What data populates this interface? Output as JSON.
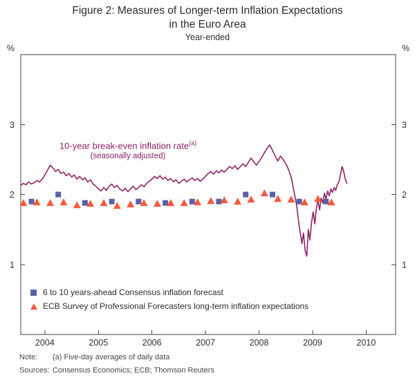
{
  "chart_data": {
    "type": "line",
    "title": "Figure 2: Measures of Longer-term Inflation Expectations",
    "subtitle": "in the Euro Area",
    "frequency_label": "Year-ended",
    "ylabel_left": "%",
    "ylabel_right": "%",
    "ylim": [
      0,
      4
    ],
    "yticks": [
      1,
      2,
      3
    ],
    "xlim": [
      2003.55,
      2010.55
    ],
    "xticks": [
      2004,
      2005,
      2006,
      2007,
      2008,
      2009,
      2010
    ],
    "grid": false,
    "annotation": {
      "line1": "10-year break-even inflation rate",
      "sup": "(a)",
      "line2": "(seasonally adjusted)",
      "color": "#8d2164"
    },
    "legend": {
      "position": "inside-bottom-left",
      "items": [
        {
          "label": "6 to 10 years-ahead Consensus inflation forecast",
          "marker": "square",
          "color": "#5661a8"
        },
        {
          "label": "ECB Survey of Professional Forecasters long-term inflation expectations",
          "marker": "triangle",
          "color": "#f25b3d"
        }
      ]
    },
    "series": [
      {
        "name": "10-year break-even inflation rate (seasonally adjusted)",
        "type": "line",
        "color": "#8d2164",
        "x": [
          2003.55,
          2003.6,
          2003.65,
          2003.7,
          2003.75,
          2003.8,
          2003.85,
          2003.9,
          2003.95,
          2004.0,
          2004.05,
          2004.1,
          2004.15,
          2004.2,
          2004.25,
          2004.3,
          2004.35,
          2004.4,
          2004.45,
          2004.5,
          2004.55,
          2004.6,
          2004.65,
          2004.7,
          2004.75,
          2004.8,
          2004.85,
          2004.9,
          2004.95,
          2005.0,
          2005.05,
          2005.1,
          2005.15,
          2005.2,
          2005.25,
          2005.3,
          2005.35,
          2005.4,
          2005.45,
          2005.5,
          2005.55,
          2005.6,
          2005.65,
          2005.7,
          2005.75,
          2005.8,
          2005.85,
          2005.9,
          2005.95,
          2006.0,
          2006.05,
          2006.1,
          2006.15,
          2006.2,
          2006.25,
          2006.3,
          2006.35,
          2006.4,
          2006.45,
          2006.5,
          2006.55,
          2006.6,
          2006.65,
          2006.7,
          2006.75,
          2006.8,
          2006.85,
          2006.9,
          2006.95,
          2007.0,
          2007.05,
          2007.1,
          2007.15,
          2007.2,
          2007.25,
          2007.3,
          2007.35,
          2007.4,
          2007.45,
          2007.5,
          2007.55,
          2007.6,
          2007.65,
          2007.7,
          2007.75,
          2007.8,
          2007.85,
          2007.9,
          2007.95,
          2008.0,
          2008.05,
          2008.1,
          2008.15,
          2008.2,
          2008.25,
          2008.3,
          2008.35,
          2008.4,
          2008.45,
          2008.5,
          2008.55,
          2008.6,
          2008.65,
          2008.7,
          2008.75,
          2008.8,
          2008.83,
          2008.86,
          2008.89,
          2008.92,
          2008.95,
          2008.98,
          2009.01,
          2009.04,
          2009.07,
          2009.1,
          2009.13,
          2009.16,
          2009.19,
          2009.22,
          2009.25,
          2009.28,
          2009.31,
          2009.34,
          2009.37,
          2009.4,
          2009.43,
          2009.46,
          2009.49,
          2009.52,
          2009.55,
          2009.58,
          2009.61,
          2009.64
        ],
        "y": [
          2.13,
          2.16,
          2.14,
          2.18,
          2.15,
          2.17,
          2.2,
          2.18,
          2.22,
          2.28,
          2.35,
          2.42,
          2.38,
          2.33,
          2.36,
          2.3,
          2.32,
          2.27,
          2.3,
          2.25,
          2.28,
          2.22,
          2.26,
          2.21,
          2.24,
          2.18,
          2.21,
          2.15,
          2.12,
          2.08,
          2.05,
          2.1,
          2.06,
          2.12,
          2.15,
          2.1,
          2.13,
          2.08,
          2.05,
          2.09,
          2.04,
          2.08,
          2.12,
          2.07,
          2.1,
          2.14,
          2.11,
          2.16,
          2.19,
          2.22,
          2.26,
          2.23,
          2.27,
          2.22,
          2.25,
          2.2,
          2.23,
          2.18,
          2.21,
          2.16,
          2.19,
          2.22,
          2.18,
          2.21,
          2.24,
          2.2,
          2.23,
          2.19,
          2.22,
          2.26,
          2.3,
          2.33,
          2.29,
          2.34,
          2.31,
          2.35,
          2.32,
          2.36,
          2.4,
          2.37,
          2.41,
          2.36,
          2.4,
          2.44,
          2.4,
          2.46,
          2.52,
          2.47,
          2.42,
          2.47,
          2.53,
          2.6,
          2.66,
          2.71,
          2.63,
          2.55,
          2.48,
          2.55,
          2.5,
          2.44,
          2.36,
          2.25,
          2.05,
          1.85,
          1.55,
          1.3,
          1.45,
          1.2,
          1.12,
          1.5,
          1.35,
          1.6,
          1.75,
          1.58,
          1.8,
          1.92,
          1.78,
          1.95,
          1.88,
          2.02,
          1.93,
          2.05,
          1.98,
          2.08,
          2.03,
          2.1,
          2.06,
          2.14,
          2.18,
          2.28,
          2.4,
          2.33,
          2.22,
          2.16
        ]
      },
      {
        "name": "6 to 10 years-ahead Consensus inflation forecast",
        "type": "scatter-square",
        "color": "#5661a8",
        "x": [
          2003.75,
          2004.25,
          2004.75,
          2005.25,
          2005.75,
          2006.25,
          2006.75,
          2007.25,
          2007.75,
          2008.25,
          2008.75,
          2009.25
        ],
        "y": [
          1.9,
          2.0,
          1.88,
          1.9,
          1.9,
          1.88,
          1.9,
          1.9,
          2.0,
          2.0,
          1.9,
          1.9
        ]
      },
      {
        "name": "ECB Survey of Professional Forecasters long-term inflation expectations",
        "type": "scatter-triangle",
        "color": "#f25b3d",
        "x": [
          2003.6,
          2003.85,
          2004.1,
          2004.35,
          2004.6,
          2004.85,
          2005.1,
          2005.35,
          2005.6,
          2005.85,
          2006.1,
          2006.35,
          2006.6,
          2006.85,
          2007.1,
          2007.35,
          2007.6,
          2007.85,
          2008.1,
          2008.35,
          2008.6,
          2008.85,
          2009.1,
          2009.35
        ],
        "y": [
          1.88,
          1.89,
          1.88,
          1.89,
          1.85,
          1.87,
          1.88,
          1.84,
          1.86,
          1.88,
          1.87,
          1.88,
          1.88,
          1.89,
          1.91,
          1.92,
          1.9,
          1.93,
          2.02,
          1.94,
          1.93,
          1.89,
          1.94,
          1.89
        ]
      }
    ]
  },
  "footer": {
    "note_label": "Note:",
    "note_text": "(a) Five-day averages of daily data",
    "sources_label": "Sources:",
    "sources_text": "Consensus Economics; ECB; Thomson Reuters"
  }
}
